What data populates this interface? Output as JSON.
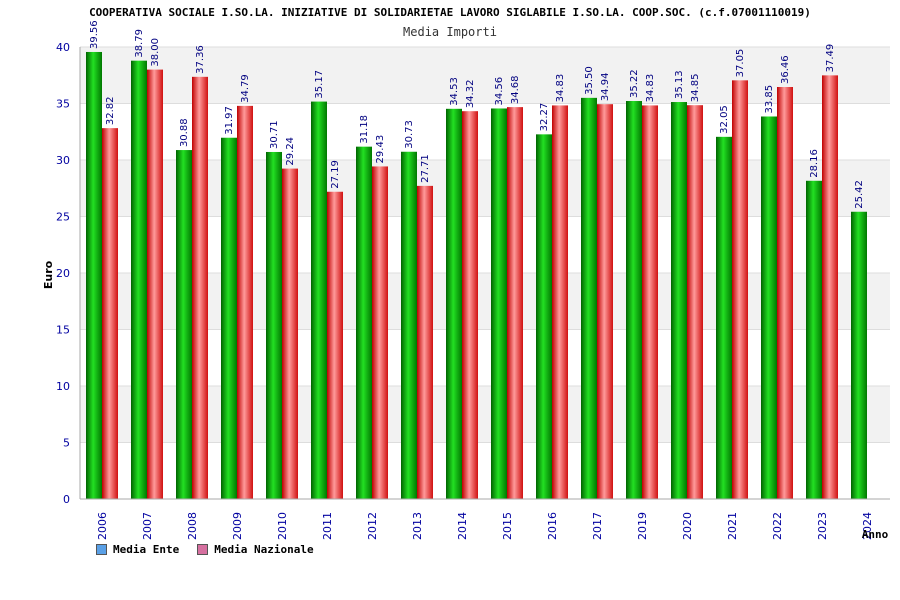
{
  "chart_data": {
    "type": "bar",
    "title": "COOPERATIVA SOCIALE I.SO.LA. INIZIATIVE DI SOLIDARIETAE LAVORO SIGLABILE I.SO.LA. COOP.SOC. (c.f.07001110019)",
    "subtitle": "Media Importi",
    "xlabel": "Anno",
    "ylabel": "Euro",
    "ylim": [
      0,
      40
    ],
    "yticks": [
      0,
      5,
      10,
      15,
      20,
      25,
      30,
      35,
      40
    ],
    "grid": true,
    "legend_position": "bottom-left",
    "categories": [
      "2006",
      "2007",
      "2008",
      "2009",
      "2010",
      "2011",
      "2012",
      "2013",
      "2014",
      "2015",
      "2016",
      "2017",
      "2019",
      "2020",
      "2021",
      "2022",
      "2023",
      "2024"
    ],
    "series": [
      {
        "name": "Media Ente",
        "color": "#00a000",
        "legend_color": "#5aa0e6",
        "values": [
          39.56,
          38.79,
          30.88,
          31.97,
          30.71,
          35.17,
          31.18,
          30.73,
          34.53,
          34.56,
          32.27,
          35.5,
          35.22,
          35.13,
          32.05,
          33.85,
          28.16,
          25.42
        ],
        "labels": [
          "39.56",
          "38.79",
          "30.88",
          "31.97",
          "30.71",
          "35.17",
          "31.18",
          "30.73",
          "34.53",
          "34.56",
          "32.27",
          "35.50",
          "35.22",
          "35.13",
          "32.05",
          "33.85",
          "28.16",
          "25.42"
        ]
      },
      {
        "name": "Media Nazionale",
        "color": "#e02020",
        "legend_color": "#d670a0",
        "values": [
          32.82,
          38.0,
          37.36,
          34.79,
          29.24,
          27.19,
          29.43,
          27.71,
          34.32,
          34.68,
          34.83,
          34.94,
          34.83,
          34.85,
          37.05,
          36.46,
          37.49,
          null
        ],
        "labels": [
          "32.82",
          "38.00",
          "37.36",
          "34.79",
          "29.24",
          "27.19",
          "29.43",
          "27.71",
          "34.32",
          "34.68",
          "34.83",
          "34.94",
          "34.83",
          "34.85",
          "37.05",
          "36.46",
          "37.49",
          ""
        ]
      }
    ]
  }
}
